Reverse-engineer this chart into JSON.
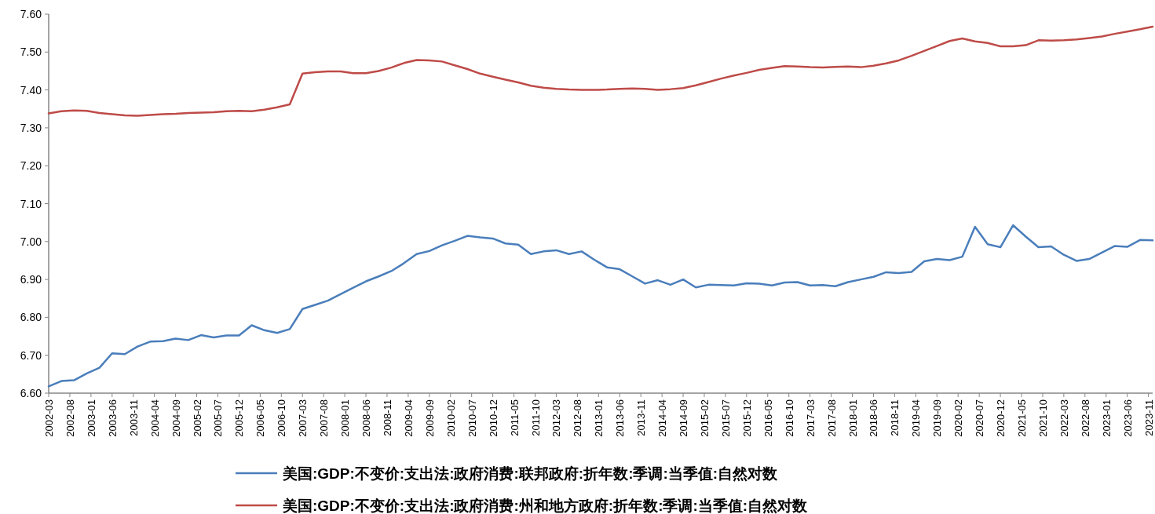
{
  "chart_data": {
    "type": "line",
    "legend": "bottom",
    "grid": false,
    "marker": "none",
    "line_style": "solid",
    "xlim": [
      "2002-03",
      "2023-12"
    ],
    "xticks": [
      "2002-03",
      "2002-08",
      "2003-01",
      "2003-06",
      "2003-11",
      "2004-04",
      "2004-09",
      "2005-02",
      "2005-07",
      "2005-12",
      "2006-05",
      "2006-10",
      "2007-03",
      "2007-08",
      "2008-01",
      "2008-06",
      "2008-11",
      "2009-04",
      "2009-09",
      "2010-02",
      "2010-07",
      "2010-12",
      "2011-05",
      "2011-10",
      "2012-03",
      "2012-08",
      "2013-01",
      "2013-06",
      "2013-11",
      "2014-04",
      "2014-09",
      "2015-02",
      "2015-07",
      "2015-12",
      "2016-05",
      "2016-10",
      "2017-03",
      "2017-08",
      "2018-01",
      "2018-06",
      "2018-11",
      "2019-04",
      "2019-09",
      "2020-02",
      "2020-07",
      "2020-12",
      "2021-05",
      "2021-10",
      "2022-03",
      "2022-08",
      "2023-01",
      "2023-06",
      "2023-11"
    ],
    "ylim": [
      6.6,
      7.6
    ],
    "yticks": [
      {
        "value": 6.6,
        "label": "6.60"
      },
      {
        "value": 6.7,
        "label": "6.70"
      },
      {
        "value": 6.8,
        "label": "6.80"
      },
      {
        "value": 6.9,
        "label": "6.90"
      },
      {
        "value": 7.0,
        "label": "7.00"
      },
      {
        "value": 7.1,
        "label": "7.10"
      },
      {
        "value": 7.2,
        "label": "7.20"
      },
      {
        "value": 7.3,
        "label": "7.30"
      },
      {
        "value": 7.4,
        "label": "7.40"
      },
      {
        "value": 7.5,
        "label": "7.50"
      },
      {
        "value": 7.6,
        "label": "7.60"
      }
    ],
    "x": [
      "2002-03",
      "2002-06",
      "2002-09",
      "2002-12",
      "2003-03",
      "2003-06",
      "2003-09",
      "2003-12",
      "2004-03",
      "2004-06",
      "2004-09",
      "2004-12",
      "2005-03",
      "2005-06",
      "2005-09",
      "2005-12",
      "2006-03",
      "2006-06",
      "2006-09",
      "2006-12",
      "2007-03",
      "2007-06",
      "2007-09",
      "2007-12",
      "2008-03",
      "2008-06",
      "2008-09",
      "2008-12",
      "2009-03",
      "2009-06",
      "2009-09",
      "2009-12",
      "2010-03",
      "2010-06",
      "2010-09",
      "2010-12",
      "2011-03",
      "2011-06",
      "2011-09",
      "2011-12",
      "2012-03",
      "2012-06",
      "2012-09",
      "2012-12",
      "2013-03",
      "2013-06",
      "2013-09",
      "2013-12",
      "2014-03",
      "2014-06",
      "2014-09",
      "2014-12",
      "2015-03",
      "2015-06",
      "2015-09",
      "2015-12",
      "2016-03",
      "2016-06",
      "2016-09",
      "2016-12",
      "2017-03",
      "2017-06",
      "2017-09",
      "2017-12",
      "2018-03",
      "2018-06",
      "2018-09",
      "2018-12",
      "2019-03",
      "2019-06",
      "2019-09",
      "2019-12",
      "2020-03",
      "2020-06",
      "2020-09",
      "2020-12",
      "2021-03",
      "2021-06",
      "2021-09",
      "2021-12",
      "2022-03",
      "2022-06",
      "2022-09",
      "2022-12",
      "2023-03",
      "2023-06",
      "2023-09",
      "2023-12"
    ],
    "series": [
      {
        "name": "美国:GDP:不变价:支出法:政府消费:联邦政府:折年数:季调:当季值:自然对数",
        "color": "#4a7ebb",
        "values": [
          6.618,
          6.632,
          6.634,
          6.652,
          6.667,
          6.705,
          6.703,
          6.723,
          6.736,
          6.737,
          6.744,
          6.74,
          6.753,
          6.747,
          6.752,
          6.752,
          6.779,
          6.766,
          6.759,
          6.769,
          6.822,
          6.833,
          6.844,
          6.861,
          6.878,
          6.895,
          6.908,
          6.922,
          6.943,
          6.967,
          6.975,
          6.99,
          7.002,
          7.015,
          7.011,
          7.008,
          6.995,
          6.992,
          6.967,
          6.974,
          6.977,
          6.967,
          6.974,
          6.952,
          6.932,
          6.927,
          6.908,
          6.889,
          6.898,
          6.886,
          6.9,
          6.879,
          6.886,
          6.885,
          6.884,
          6.89,
          6.889,
          6.884,
          6.892,
          6.893,
          6.884,
          6.885,
          6.882,
          6.893,
          6.9,
          6.907,
          6.919,
          6.917,
          6.92,
          6.948,
          6.954,
          6.951,
          6.96,
          7.039,
          6.993,
          6.985,
          7.043,
          7.013,
          6.985,
          6.987,
          6.965,
          6.949,
          6.954,
          6.971,
          6.988,
          6.986,
          7.004,
          7.003
        ]
      },
      {
        "name": "美国:GDP:不变价:支出法:政府消费:州和地方政府:折年数:季调:当季值:自然对数",
        "color": "#be4b48",
        "values": [
          7.338,
          7.344,
          7.346,
          7.345,
          7.339,
          7.336,
          7.333,
          7.332,
          7.334,
          7.336,
          7.337,
          7.339,
          7.34,
          7.341,
          7.344,
          7.345,
          7.344,
          7.348,
          7.354,
          7.362,
          7.443,
          7.447,
          7.449,
          7.449,
          7.444,
          7.444,
          7.45,
          7.459,
          7.471,
          7.479,
          7.478,
          7.475,
          7.465,
          7.455,
          7.443,
          7.435,
          7.427,
          7.42,
          7.411,
          7.406,
          7.403,
          7.401,
          7.4,
          7.4,
          7.401,
          7.403,
          7.404,
          7.403,
          7.4,
          7.402,
          7.405,
          7.412,
          7.421,
          7.43,
          7.438,
          7.445,
          7.453,
          7.458,
          7.463,
          7.462,
          7.46,
          7.459,
          7.461,
          7.462,
          7.46,
          7.464,
          7.47,
          7.478,
          7.49,
          7.503,
          7.516,
          7.529,
          7.536,
          7.528,
          7.524,
          7.515,
          7.515,
          7.518,
          7.531,
          7.53,
          7.531,
          7.533,
          7.537,
          7.541,
          7.548,
          7.554,
          7.56,
          7.567
        ]
      }
    ]
  }
}
